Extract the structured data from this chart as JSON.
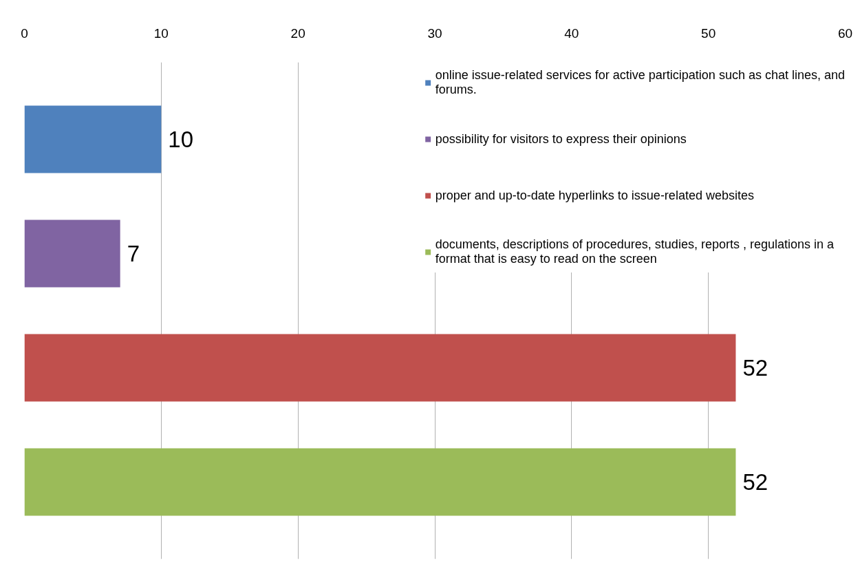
{
  "chart_data": {
    "type": "bar",
    "orientation": "horizontal",
    "categories": [
      null
    ],
    "series": [
      {
        "name": "online issue-related services for active participation such as chat lines, and forums.",
        "color": "#4f81bd",
        "values": [
          10
        ]
      },
      {
        "name": "possibility for visitors to express their opinions",
        "color": "#8064a2",
        "values": [
          7
        ]
      },
      {
        "name": "proper and up-to-date hyperlinks to issue-related websites",
        "color": "#c0504d",
        "values": [
          52
        ]
      },
      {
        "name": "documents, descriptions of procedures, studies, reports , regulations in a format that is easy to read on the screen",
        "color": "#9bbb59",
        "values": [
          52
        ]
      }
    ],
    "xlim": [
      0,
      60
    ],
    "xticks": [
      0,
      10,
      20,
      30,
      40,
      50,
      60
    ],
    "grid": "x",
    "legend": "top right",
    "data_labels": true,
    "tick_labels": "x"
  }
}
